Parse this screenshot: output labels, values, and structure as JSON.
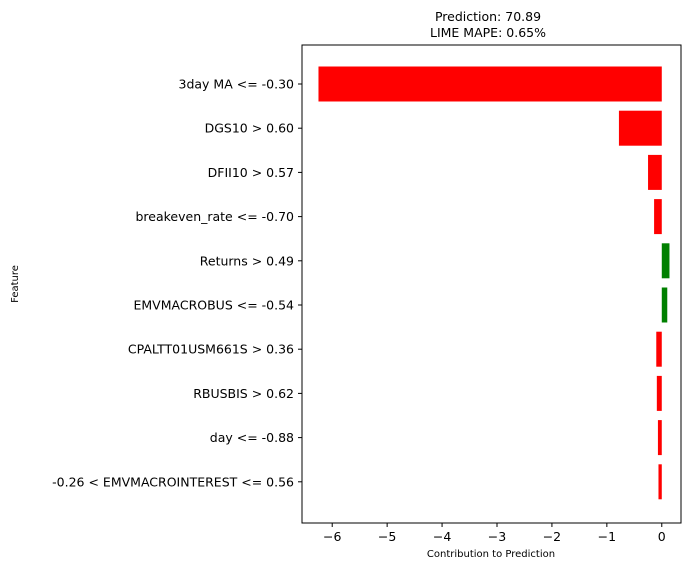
{
  "chart_data": {
    "type": "bar",
    "orientation": "horizontal",
    "title": "Prediction: 70.89",
    "subtitle": "LIME MAPE: 0.65%",
    "xlabel": "Contribution to Prediction",
    "ylabel": "Feature",
    "xlim": [
      -6.55,
      0.35
    ],
    "xticks": [
      -6,
      -5,
      -4,
      -3,
      -2,
      -1,
      0
    ],
    "xtick_labels": [
      "−6",
      "−5",
      "−4",
      "−3",
      "−2",
      "−1",
      "0"
    ],
    "grid": false,
    "colors": {
      "positive": "#008000",
      "negative": "#ff0000"
    },
    "categories": [
      "3day MA <= -0.30",
      "DGS10 > 0.60",
      "DFII10 > 0.57",
      "breakeven_rate <= -0.70",
      "Returns > 0.49",
      "EMVMACROBUS <= -0.54",
      "CPALTT01USM661S > 0.36",
      "RBUSBIS > 0.62",
      "day <= -0.88",
      "-0.26 < EMVMACROINTEREST <= 0.56"
    ],
    "values": [
      -6.25,
      -0.78,
      -0.25,
      -0.14,
      0.14,
      0.1,
      -0.1,
      -0.09,
      -0.07,
      -0.06
    ]
  }
}
